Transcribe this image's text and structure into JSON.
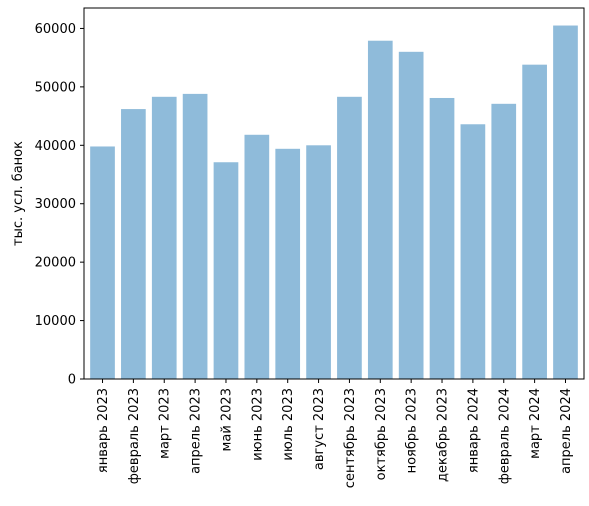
{
  "chart_data": {
    "type": "bar",
    "categories": [
      "январь 2023",
      "февраль 2023",
      "март 2023",
      "апрель 2023",
      "май 2023",
      "июнь 2023",
      "июль 2023",
      "август 2023",
      "сентябрь 2023",
      "октябрь 2023",
      "ноябрь 2023",
      "декабрь 2023",
      "январь 2024",
      "февраль 2024",
      "март 2024",
      "апрель 2024"
    ],
    "values": [
      39800,
      46200,
      48300,
      48800,
      37100,
      41800,
      39400,
      40000,
      48300,
      57900,
      56000,
      48100,
      43600,
      47100,
      53800,
      60500
    ],
    "ylabel": "тыс. усл. банок",
    "xlabel": "",
    "title": "",
    "ylim": [
      0,
      63500
    ],
    "yticks": [
      0,
      10000,
      20000,
      30000,
      40000,
      50000,
      60000
    ],
    "bar_color": "#8fbbda",
    "grid": false,
    "legend": false
  }
}
